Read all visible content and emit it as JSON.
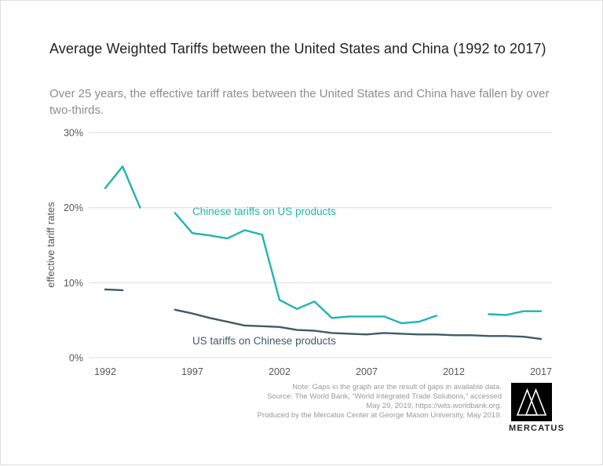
{
  "page": {
    "title": "Average Weighted Tariffs between the United States and China (1992 to 2017)",
    "subtitle": "Over 25 years, the effective tariff rates between the United States and China have fallen by over two-thirds."
  },
  "chart_data": {
    "type": "line",
    "title": "Average Weighted Tariffs between the United States and China (1992 to 2017)",
    "subtitle": "Over 25 years, the effective tariff rates between the United States and China have fallen by over two-thirds.",
    "xlabel": "",
    "ylabel": "effective tariff rates",
    "ylim": [
      0,
      30
    ],
    "xlim": [
      1992,
      2017
    ],
    "grid": "horizontal",
    "legend_position": "inline-labels",
    "yticks": [
      {
        "value": 0,
        "label": "0%"
      },
      {
        "value": 10,
        "label": "10%"
      },
      {
        "value": 20,
        "label": "20%"
      },
      {
        "value": 30,
        "label": "30%"
      }
    ],
    "xticks": [
      {
        "value": 1992,
        "label": "1992"
      },
      {
        "value": 1997,
        "label": "1997"
      },
      {
        "value": 2002,
        "label": "2002"
      },
      {
        "value": 2007,
        "label": "2007"
      },
      {
        "value": 2012,
        "label": "2012"
      },
      {
        "value": 2017,
        "label": "2017"
      }
    ],
    "colors": {
      "grid": "#dcdcdc",
      "axis_text": "#55575a",
      "chinese_series": "#1fb4b2",
      "us_series": "#3e5c63"
    },
    "series": [
      {
        "id": "chinese",
        "name": "Chinese tariffs on US products",
        "color": "#1fb4b2",
        "label_anchor": {
          "year": 1997.0,
          "value": 19.0
        },
        "segments": [
          [
            [
              1992,
              22.6
            ],
            [
              1993,
              25.5
            ],
            [
              1994,
              20.0
            ]
          ],
          [
            [
              1996,
              19.3
            ],
            [
              1997,
              16.6
            ],
            [
              1998,
              16.3
            ],
            [
              1999,
              15.9
            ],
            [
              2000,
              17.0
            ],
            [
              2001,
              16.4
            ],
            [
              2002,
              7.7
            ],
            [
              2003,
              6.5
            ],
            [
              2004,
              7.5
            ],
            [
              2005,
              5.3
            ],
            [
              2006,
              5.5
            ],
            [
              2007,
              5.5
            ],
            [
              2008,
              5.5
            ],
            [
              2009,
              4.6
            ],
            [
              2010,
              4.8
            ],
            [
              2011,
              5.6
            ]
          ],
          [
            [
              2014,
              5.8
            ],
            [
              2015,
              5.7
            ],
            [
              2016,
              6.2
            ],
            [
              2017,
              6.2
            ]
          ]
        ]
      },
      {
        "id": "us",
        "name": "US tariffs on Chinese products",
        "color": "#3e5c63",
        "label_anchor": {
          "year": 1997.0,
          "value": 1.8
        },
        "segments": [
          [
            [
              1992,
              9.1
            ],
            [
              1993,
              9.0
            ]
          ],
          [
            [
              1996,
              6.4
            ],
            [
              1997,
              5.9
            ],
            [
              1998,
              5.3
            ],
            [
              1999,
              4.8
            ],
            [
              2000,
              4.3
            ],
            [
              2001,
              4.2
            ],
            [
              2002,
              4.1
            ],
            [
              2003,
              3.7
            ],
            [
              2004,
              3.6
            ],
            [
              2005,
              3.3
            ],
            [
              2006,
              3.2
            ],
            [
              2007,
              3.1
            ],
            [
              2008,
              3.3
            ],
            [
              2009,
              3.2
            ],
            [
              2010,
              3.1
            ],
            [
              2011,
              3.1
            ],
            [
              2012,
              3.0
            ],
            [
              2013,
              3.0
            ],
            [
              2014,
              2.9
            ],
            [
              2015,
              2.9
            ],
            [
              2016,
              2.8
            ],
            [
              2017,
              2.5
            ]
          ]
        ]
      }
    ],
    "note": "Gaps in the graph are the result of gaps in available data."
  },
  "footer": {
    "note_lines": [
      "Note: Gaps in the graph are the result of gaps in available data.",
      "Source: The World Bank, “World Integrated Trade Solutions,” accessed",
      "May 29, 2019, https://wits.worldbank.org.",
      "Produced by the Mercatus Center at George Mason University, May 2019."
    ],
    "logo_text": "MERCATUS"
  }
}
